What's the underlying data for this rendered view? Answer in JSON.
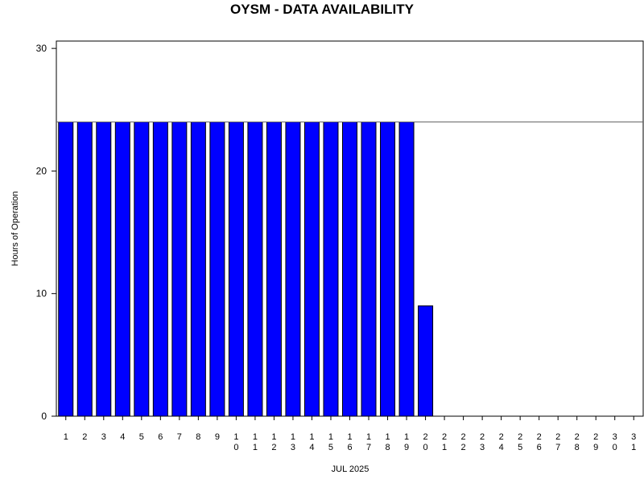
{
  "chart_data": {
    "type": "bar",
    "title": "OYSM - DATA AVAILABILITY",
    "ylabel": "Hours of Operation",
    "xlabel": "JUL 2025",
    "categories": [
      "1",
      "2",
      "3",
      "4",
      "5",
      "6",
      "7",
      "8",
      "9",
      "10",
      "11",
      "12",
      "13",
      "14",
      "15",
      "16",
      "17",
      "18",
      "19",
      "20",
      "21",
      "22",
      "23",
      "24",
      "25",
      "26",
      "27",
      "28",
      "29",
      "30",
      "31"
    ],
    "values": [
      24,
      24,
      24,
      24,
      24,
      24,
      24,
      24,
      24,
      24,
      24,
      24,
      24,
      24,
      24,
      24,
      24,
      24,
      24,
      9,
      0,
      0,
      0,
      0,
      0,
      0,
      0,
      0,
      0,
      0,
      0
    ],
    "color": "#0000ff",
    "reference_line": 24,
    "ylim": [
      0,
      30.6
    ],
    "yticks": [
      0,
      10,
      20,
      30
    ]
  }
}
